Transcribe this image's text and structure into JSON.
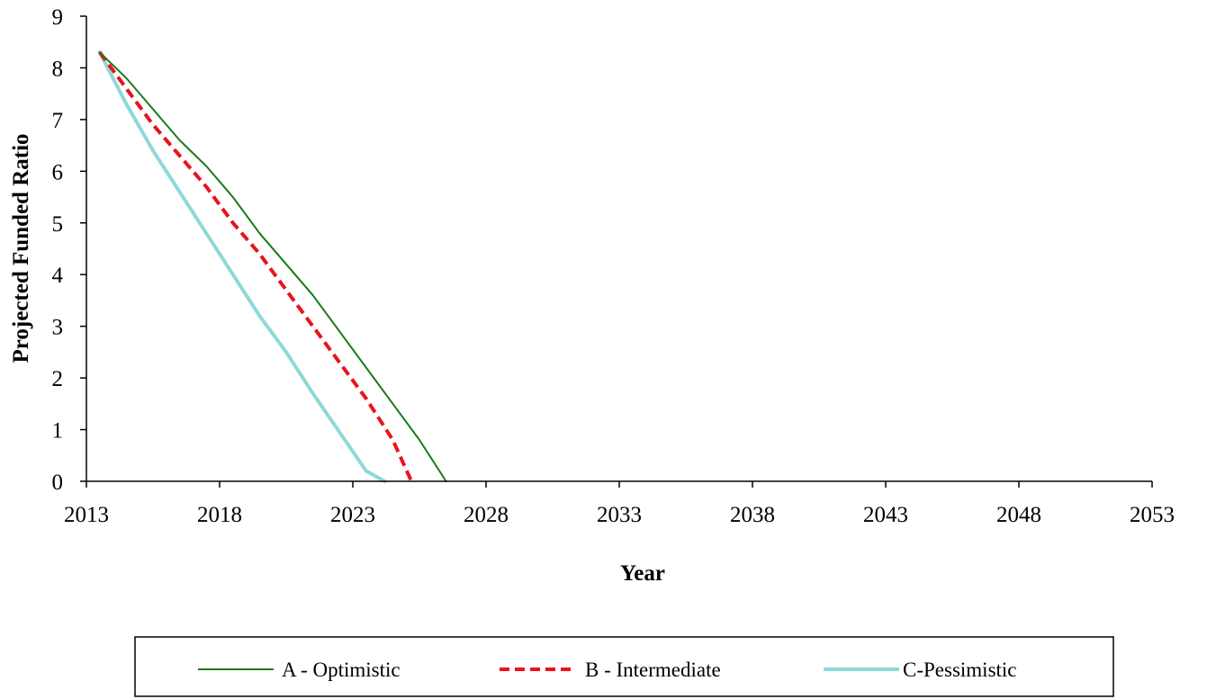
{
  "chart_data": {
    "type": "line",
    "title": "",
    "xlabel": "Year",
    "ylabel": "Projected Funded Ratio",
    "xlim": [
      2013,
      2053
    ],
    "ylim": [
      0,
      9
    ],
    "x_ticks": [
      "2013",
      "2018",
      "2023",
      "2028",
      "2033",
      "2038",
      "2043",
      "2048",
      "2053"
    ],
    "y_ticks": [
      "0",
      "1",
      "2",
      "3",
      "4",
      "5",
      "6",
      "7",
      "8",
      "9"
    ],
    "grid": false,
    "legend_position": "bottom",
    "series": [
      {
        "name": "A - Optimistic",
        "color": "#1a7a1a",
        "style": "solid",
        "x": [
          2013.5,
          2014.5,
          2015.5,
          2016.5,
          2017.5,
          2018.5,
          2019.5,
          2020.5,
          2021.5,
          2022.5,
          2023.5,
          2024.5,
          2025.5,
          2026.5
        ],
        "y": [
          8.3,
          7.8,
          7.2,
          6.6,
          6.1,
          5.5,
          4.8,
          4.2,
          3.6,
          2.9,
          2.2,
          1.5,
          0.8,
          0
        ]
      },
      {
        "name": "B - Intermediate",
        "color": "#e8141c",
        "style": "dashed",
        "x": [
          2013.5,
          2014.5,
          2015.5,
          2016.5,
          2017.5,
          2018.5,
          2019.5,
          2020.5,
          2021.5,
          2022.5,
          2023.5,
          2024.5,
          2025.2
        ],
        "y": [
          8.3,
          7.6,
          6.9,
          6.3,
          5.7,
          5.0,
          4.4,
          3.7,
          3.0,
          2.3,
          1.6,
          0.8,
          0
        ]
      },
      {
        "name": "C-Pessimistic",
        "color": "#8fd8d8",
        "style": "solid",
        "x": [
          2013.5,
          2014.5,
          2015.5,
          2016.5,
          2017.5,
          2018.5,
          2019.5,
          2020.5,
          2021.5,
          2022.5,
          2023.5,
          2024.2
        ],
        "y": [
          8.3,
          7.3,
          6.4,
          5.6,
          4.8,
          4.0,
          3.2,
          2.5,
          1.7,
          0.95,
          0.2,
          0
        ]
      }
    ]
  }
}
